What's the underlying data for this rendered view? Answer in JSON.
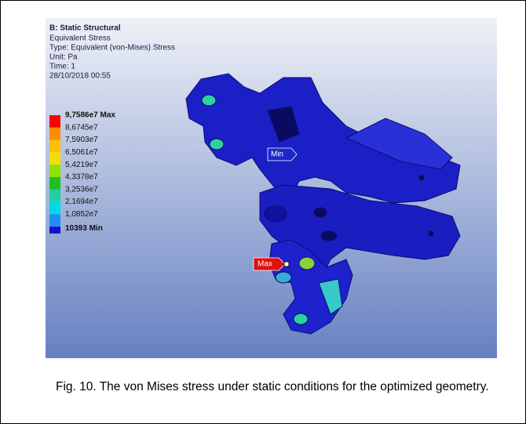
{
  "screenshot": {
    "header": [
      "B: Static Structural",
      "Equivalent Stress",
      "Type: Equivalent (von-Mises) Stress",
      "Unit: Pa",
      "Time: 1",
      "28/10/2018 00:55"
    ],
    "legend": {
      "labels": [
        "9,7586e7 Max",
        "8,6745e7",
        "7,5903e7",
        "6,5061e7",
        "5,4219e7",
        "4,3378e7",
        "3,2536e7",
        "2,1694e7",
        "1,0852e7",
        "10393 Min"
      ],
      "colors": [
        "#ff0000",
        "#ff8c00",
        "#ffc000",
        "#f0e000",
        "#90e000",
        "#20c020",
        "#20d0a0",
        "#00d8e8",
        "#2090f0",
        "#1010d0"
      ]
    },
    "min_probe": "Min",
    "max_probe": "Max"
  },
  "caption": "Fig. 10. The von Mises stress under static conditions for the optimized geometry."
}
